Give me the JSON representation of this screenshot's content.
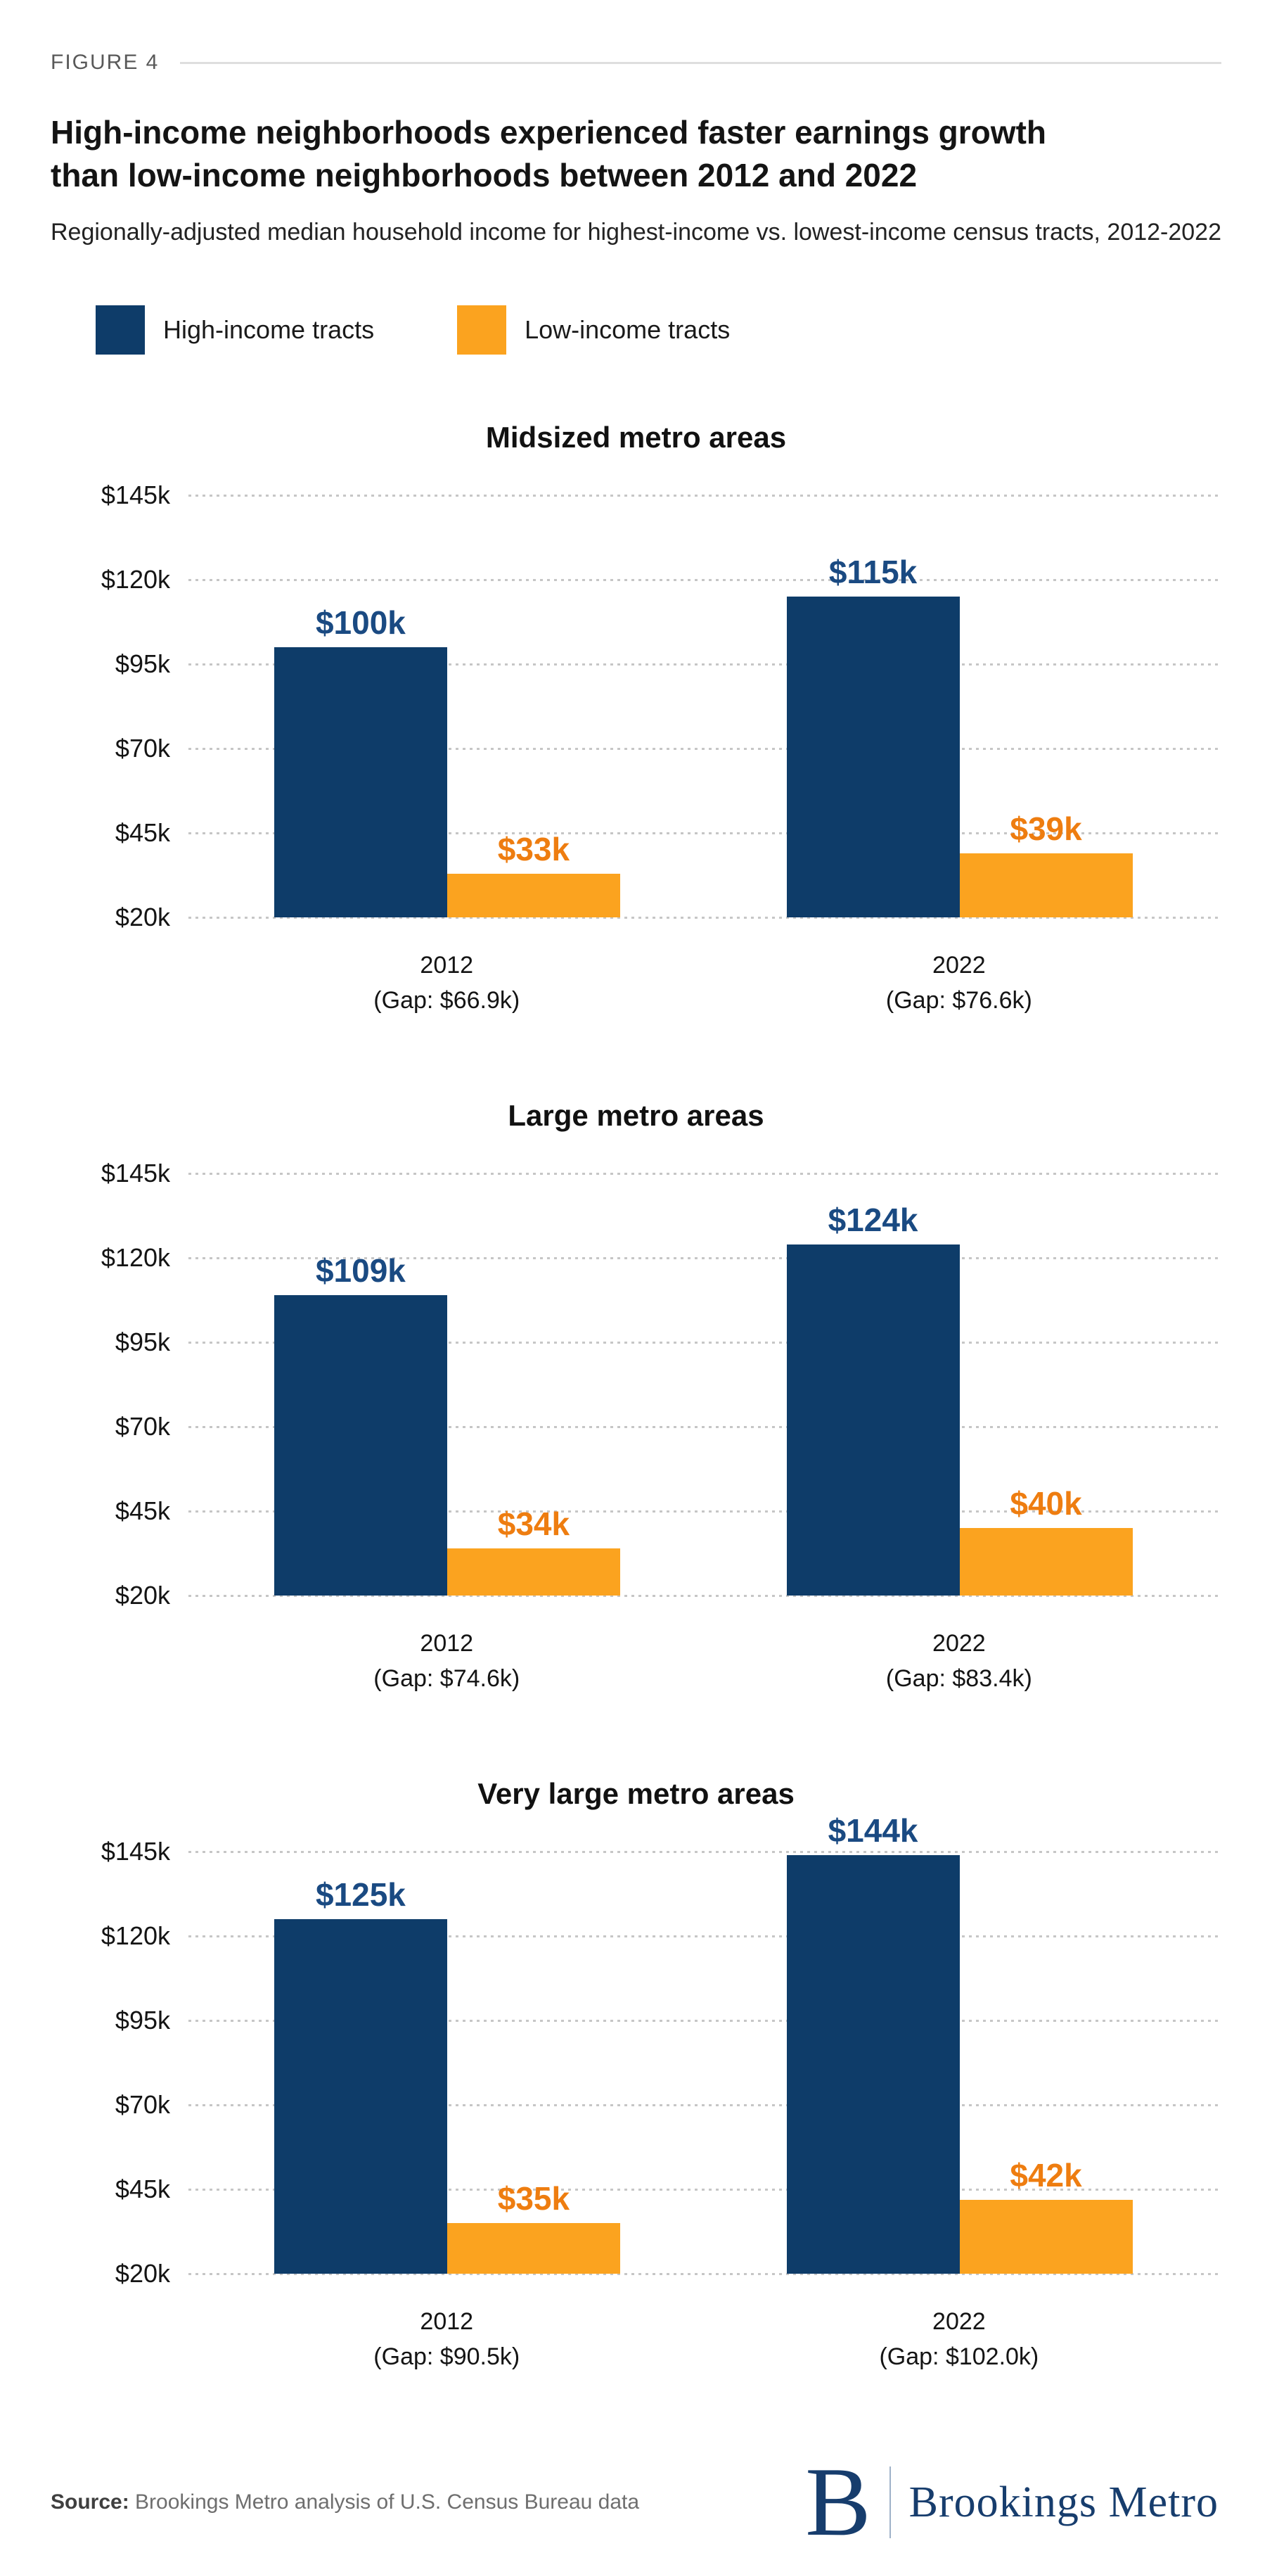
{
  "figure_label": "FIGURE 4",
  "title": "High-income neighborhoods experienced faster earnings growth than low-income neighborhoods between 2012 and 2022",
  "subtitle": "Regionally-adjusted median household income for highest-income vs. lowest-income census tracts, 2012-2022",
  "colors": {
    "high_income_bar": "#0e3c69",
    "high_income_label": "#1a4a82",
    "low_income_bar": "#fba31f",
    "low_income_label": "#ee7d10",
    "gridline": "#c6c6c6",
    "logo_navy": "#173d6d"
  },
  "legend": {
    "items": [
      {
        "label": "High-income tracts",
        "color": "#0e3c69"
      },
      {
        "label": "Low-income tracts",
        "color": "#fba31f"
      }
    ]
  },
  "chart_data": [
    {
      "type": "bar",
      "title": "Midsized metro areas",
      "ylabel": "",
      "xlabel": "",
      "ylim_thousands": [
        20,
        145
      ],
      "y_ticks": [
        "$145k",
        "$120k",
        "$95k",
        "$70k",
        "$45k",
        "$20k"
      ],
      "grid": "dotted-horizontal",
      "categories": [
        {
          "label": "2012",
          "sublabel": "(Gap: $66.9k)"
        },
        {
          "label": "2022",
          "sublabel": "(Gap: $76.6k)"
        }
      ],
      "series": [
        {
          "name": "High-income tracts",
          "color": "#0e3c69",
          "label_color": "#1a4a82",
          "values_thousands": [
            100,
            115
          ],
          "value_labels": [
            "$100k",
            "$115k"
          ]
        },
        {
          "name": "Low-income tracts",
          "color": "#fba31f",
          "label_color": "#ee7d10",
          "values_thousands": [
            33,
            39
          ],
          "value_labels": [
            "$33k",
            "$39k"
          ]
        }
      ]
    },
    {
      "type": "bar",
      "title": "Large metro areas",
      "ylabel": "",
      "xlabel": "",
      "ylim_thousands": [
        20,
        145
      ],
      "y_ticks": [
        "$145k",
        "$120k",
        "$95k",
        "$70k",
        "$45k",
        "$20k"
      ],
      "grid": "dotted-horizontal",
      "categories": [
        {
          "label": "2012",
          "sublabel": "(Gap: $74.6k)"
        },
        {
          "label": "2022",
          "sublabel": "(Gap: $83.4k)"
        }
      ],
      "series": [
        {
          "name": "High-income tracts",
          "color": "#0e3c69",
          "label_color": "#1a4a82",
          "values_thousands": [
            109,
            124
          ],
          "value_labels": [
            "$109k",
            "$124k"
          ]
        },
        {
          "name": "Low-income tracts",
          "color": "#fba31f",
          "label_color": "#ee7d10",
          "values_thousands": [
            34,
            40
          ],
          "value_labels": [
            "$34k",
            "$40k"
          ]
        }
      ]
    },
    {
      "type": "bar",
      "title": "Very large metro areas",
      "ylabel": "",
      "xlabel": "",
      "ylim_thousands": [
        20,
        145
      ],
      "y_ticks": [
        "$145k",
        "$120k",
        "$95k",
        "$70k",
        "$45k",
        "$20k"
      ],
      "grid": "dotted-horizontal",
      "categories": [
        {
          "label": "2012",
          "sublabel": "(Gap: $90.5k)"
        },
        {
          "label": "2022",
          "sublabel": "(Gap: $102.0k)"
        }
      ],
      "series": [
        {
          "name": "High-income tracts",
          "color": "#0e3c69",
          "label_color": "#1a4a82",
          "values_thousands": [
            125,
            144
          ],
          "value_labels": [
            "$125k",
            "$144k"
          ]
        },
        {
          "name": "Low-income tracts",
          "color": "#fba31f",
          "label_color": "#ee7d10",
          "values_thousands": [
            35,
            42
          ],
          "value_labels": [
            "$35k",
            "$42k"
          ]
        }
      ]
    }
  ],
  "footer": {
    "source_bold": "Source:",
    "source_text": " Brookings Metro analysis of U.S. Census Bureau data",
    "logo_initial": "B",
    "logo_name": "Brookings Metro"
  }
}
